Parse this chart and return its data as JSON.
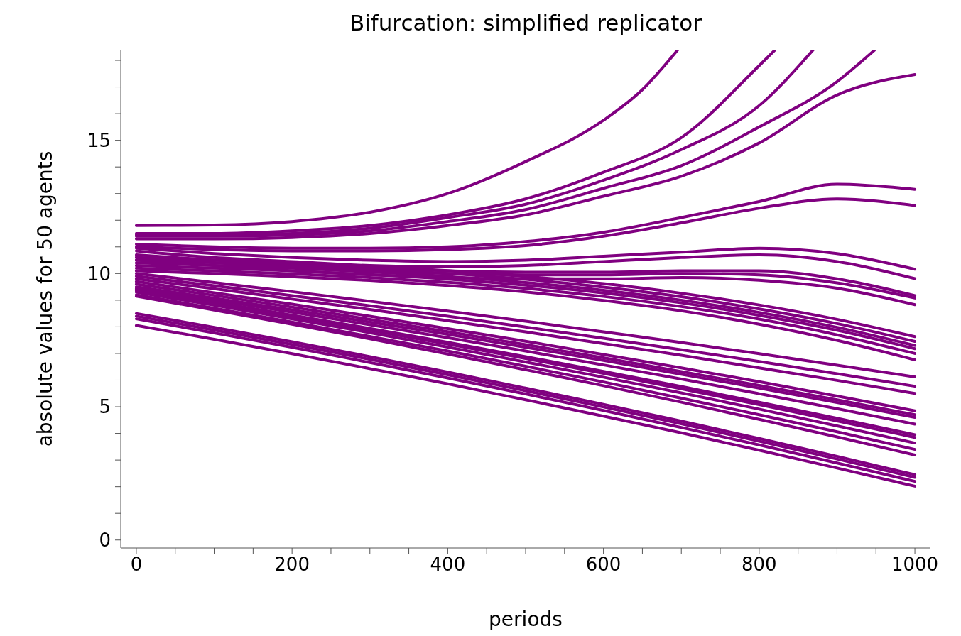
{
  "chart_data": {
    "type": "line",
    "title": "Bifurcation: simplified replicator",
    "xlabel": "periods",
    "ylabel": "absolute values for 50 agents",
    "xlim": [
      -20,
      1020
    ],
    "ylim": [
      -0.3,
      18.4
    ],
    "xticks": [
      0,
      {
        "value": 50,
        "label": null
      },
      {
        "value": 100,
        "label": null
      },
      {
        "value": 150,
        "label": null
      },
      200,
      {
        "value": 250,
        "label": null
      },
      {
        "value": 300,
        "label": null
      },
      {
        "value": 350,
        "label": null
      },
      400,
      {
        "value": 450,
        "label": null
      },
      {
        "value": 500,
        "label": null
      },
      {
        "value": 550,
        "label": null
      },
      600,
      {
        "value": 650,
        "label": null
      },
      {
        "value": 700,
        "label": null
      },
      {
        "value": 750,
        "label": null
      },
      800,
      {
        "value": 850,
        "label": null
      },
      {
        "value": 900,
        "label": null
      },
      {
        "value": 950,
        "label": null
      },
      1000
    ],
    "yticks": [
      0,
      {
        "value": 1,
        "label": null
      },
      {
        "value": 2,
        "label": null
      },
      {
        "value": 3,
        "label": null
      },
      {
        "value": 4,
        "label": null
      },
      5,
      {
        "value": 6,
        "label": null
      },
      {
        "value": 7,
        "label": null
      },
      {
        "value": 8,
        "label": null
      },
      {
        "value": 9,
        "label": null
      },
      10,
      {
        "value": 11,
        "label": null
      },
      {
        "value": 12,
        "label": null
      },
      {
        "value": 13,
        "label": null
      },
      {
        "value": 14,
        "label": null
      },
      15,
      {
        "value": 16,
        "label": null
      },
      {
        "value": 17,
        "label": null
      },
      {
        "value": 18,
        "label": null
      }
    ],
    "grid": false,
    "legend": false,
    "marker": "none",
    "line_style": "solid",
    "x": [
      0,
      100,
      200,
      300,
      400,
      500,
      600,
      700,
      800,
      900,
      1000
    ],
    "series": [
      {
        "color": "#800080",
        "x": [
          0,
          100,
          200,
          300,
          400,
          500,
          600,
          650,
          695
        ],
        "values": [
          11.8,
          11.82,
          11.95,
          12.3,
          13.0,
          14.2,
          15.75,
          16.9,
          18.38
        ]
      },
      {
        "color": "#800080",
        "x": [
          0,
          100,
          200,
          300,
          400,
          500,
          600,
          700,
          800,
          820
        ],
        "values": [
          11.5,
          11.5,
          11.6,
          11.8,
          12.2,
          12.8,
          13.8,
          15.1,
          17.8,
          18.38
        ]
      },
      {
        "color": "#800080",
        "x": [
          0,
          100,
          200,
          300,
          400,
          500,
          600,
          700,
          800,
          869
        ],
        "values": [
          11.45,
          11.45,
          11.5,
          11.7,
          12.1,
          12.6,
          13.5,
          14.65,
          16.3,
          18.38
        ]
      },
      {
        "color": "#800080",
        "x": [
          0,
          100,
          200,
          300,
          400,
          500,
          600,
          700,
          800,
          900,
          948
        ],
        "values": [
          11.4,
          11.4,
          11.45,
          11.6,
          11.95,
          12.4,
          13.2,
          14.05,
          15.5,
          17.2,
          18.38
        ]
      },
      {
        "color": "#800080",
        "values": [
          11.3,
          11.3,
          11.35,
          11.5,
          11.8,
          12.2,
          12.9,
          13.65,
          14.9,
          16.7,
          17.47
        ]
      },
      {
        "color": "#800080",
        "values": [
          11.1,
          11.0,
          10.95,
          10.95,
          11.0,
          11.2,
          11.55,
          12.1,
          12.7,
          13.35,
          13.16
        ]
      },
      {
        "color": "#800080",
        "values": [
          11.0,
          10.9,
          10.85,
          10.85,
          10.9,
          11.05,
          11.4,
          11.9,
          12.45,
          12.8,
          12.55
        ]
      },
      {
        "color": "#800080",
        "values": [
          10.95,
          10.75,
          10.6,
          10.5,
          10.45,
          10.5,
          10.65,
          10.8,
          10.95,
          10.75,
          10.16
        ]
      },
      {
        "color": "#800080",
        "values": [
          10.85,
          10.6,
          10.45,
          10.3,
          10.25,
          10.3,
          10.45,
          10.6,
          10.7,
          10.45,
          9.81
        ]
      },
      {
        "color": "#800080",
        "values": [
          10.7,
          10.5,
          10.35,
          10.2,
          10.1,
          10.05,
          10.05,
          10.1,
          10.1,
          9.8,
          9.17
        ]
      },
      {
        "color": "#800080",
        "values": [
          10.6,
          10.4,
          10.25,
          10.1,
          10.0,
          9.95,
          9.95,
          10.0,
          9.95,
          9.65,
          9.08
        ]
      },
      {
        "color": "#800080",
        "values": [
          10.5,
          10.3,
          10.1,
          9.95,
          9.85,
          9.8,
          9.8,
          9.85,
          9.75,
          9.45,
          8.83
        ]
      },
      {
        "color": "#800080",
        "values": [
          10.6,
          10.51,
          10.41,
          10.28,
          10.11,
          9.89,
          9.62,
          9.26,
          8.82,
          8.28,
          7.63
        ]
      },
      {
        "color": "#800080",
        "values": [
          10.5,
          10.41,
          10.3,
          10.17,
          10.0,
          9.78,
          9.49,
          9.13,
          8.67,
          8.12,
          7.45
        ]
      },
      {
        "color": "#800080",
        "values": [
          10.4,
          10.3,
          10.2,
          10.06,
          9.89,
          9.66,
          9.37,
          9.0,
          8.54,
          7.98,
          7.3
        ]
      },
      {
        "color": "#800080",
        "values": [
          10.3,
          10.2,
          10.1,
          9.96,
          9.79,
          9.56,
          9.27,
          8.9,
          8.43,
          7.87,
          7.18
        ]
      },
      {
        "color": "#800080",
        "values": [
          10.2,
          10.1,
          9.99,
          9.85,
          9.67,
          9.44,
          9.14,
          8.76,
          8.29,
          7.7,
          7.0
        ]
      },
      {
        "color": "#800080",
        "values": [
          10.1,
          10.0,
          9.88,
          9.74,
          9.55,
          9.31,
          8.99,
          8.6,
          8.1,
          7.49,
          6.76
        ]
      },
      {
        "color": "#800080",
        "values": [
          10.0,
          9.66,
          9.32,
          8.96,
          8.59,
          8.21,
          7.81,
          7.41,
          6.99,
          6.56,
          6.12
        ]
      },
      {
        "color": "#800080",
        "values": [
          9.9,
          9.54,
          9.17,
          8.79,
          8.4,
          7.99,
          7.57,
          7.14,
          6.7,
          6.24,
          5.77
        ]
      },
      {
        "color": "#800080",
        "values": [
          9.8,
          9.43,
          9.04,
          8.65,
          8.23,
          7.81,
          7.37,
          6.93,
          6.46,
          5.99,
          5.5
        ]
      },
      {
        "color": "#800080",
        "values": [
          9.7,
          9.28,
          8.85,
          8.4,
          7.93,
          7.46,
          6.96,
          6.46,
          5.94,
          5.4,
          4.85
        ]
      },
      {
        "color": "#800080",
        "values": [
          9.6,
          9.18,
          8.74,
          8.28,
          7.82,
          7.33,
          6.84,
          6.32,
          5.8,
          5.26,
          4.7
        ]
      },
      {
        "color": "#800080",
        "values": [
          9.5,
          9.08,
          8.64,
          8.18,
          7.72,
          7.23,
          6.74,
          6.22,
          5.7,
          5.16,
          4.6
        ]
      },
      {
        "color": "#800080",
        "values": [
          9.45,
          9.01,
          8.55,
          8.08,
          7.59,
          7.09,
          6.57,
          6.04,
          5.49,
          4.93,
          4.35
        ]
      },
      {
        "color": "#800080",
        "values": [
          9.4,
          8.93,
          8.44,
          7.94,
          7.42,
          6.88,
          6.33,
          5.76,
          5.17,
          4.57,
          3.95
        ]
      },
      {
        "color": "#800080",
        "values": [
          9.35,
          8.87,
          8.38,
          7.87,
          7.35,
          6.81,
          6.25,
          5.67,
          5.08,
          4.47,
          3.85
        ]
      },
      {
        "color": "#800080",
        "values": [
          9.3,
          8.81,
          8.3,
          7.78,
          7.24,
          6.68,
          6.11,
          5.52,
          4.91,
          4.28,
          3.64
        ]
      },
      {
        "color": "#800080",
        "values": [
          9.2,
          8.7,
          8.18,
          7.64,
          7.09,
          6.52,
          5.93,
          5.32,
          4.7,
          4.06,
          3.4
        ]
      },
      {
        "color": "#800080",
        "values": [
          9.15,
          8.63,
          8.1,
          7.55,
          6.98,
          6.39,
          5.79,
          5.17,
          4.53,
          3.87,
          3.19
        ]
      },
      {
        "color": "#800080",
        "values": [
          8.5,
          7.98,
          7.44,
          6.88,
          6.3,
          5.7,
          5.09,
          4.46,
          3.81,
          3.14,
          2.45
        ]
      },
      {
        "color": "#800080",
        "values": [
          8.4,
          7.88,
          7.34,
          6.78,
          6.2,
          5.6,
          4.99,
          4.36,
          3.71,
          3.04,
          2.35
        ]
      },
      {
        "color": "#800080",
        "values": [
          8.3,
          7.77,
          7.23,
          6.66,
          6.08,
          5.48,
          4.86,
          4.22,
          3.57,
          2.89,
          2.2
        ]
      },
      {
        "color": "#800080",
        "values": [
          8.05,
          7.53,
          6.99,
          6.43,
          5.86,
          5.26,
          4.65,
          4.02,
          3.37,
          2.7,
          2.02
        ]
      }
    ]
  }
}
